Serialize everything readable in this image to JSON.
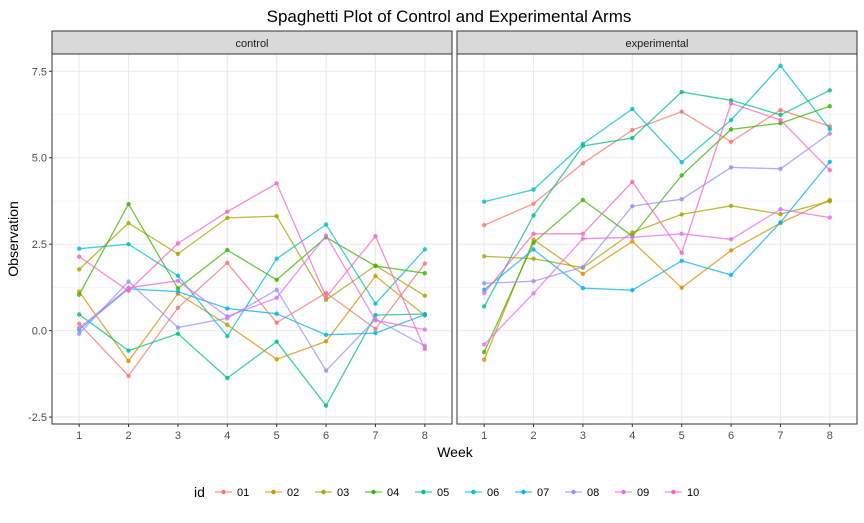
{
  "chart_data": {
    "type": "line",
    "title": "Spaghetti Plot of Control and Experimental Arms",
    "xlabel": "Week",
    "ylabel": "Observation",
    "x": [
      1,
      2,
      3,
      4,
      5,
      6,
      7,
      8
    ],
    "x_tick_labels": [
      "1",
      "2",
      "3",
      "4",
      "5",
      "6",
      "7",
      "8"
    ],
    "y_ticks": [
      -2.5,
      0.0,
      2.5,
      5.0,
      7.5
    ],
    "y_tick_labels": [
      "-2.5",
      "0.0",
      "2.5",
      "5.0",
      "7.5"
    ],
    "ylim": [
      -2.7,
      8.0
    ],
    "grid": true,
    "legend": {
      "title": "id",
      "placement": "bottom",
      "entries": [
        "01",
        "02",
        "03",
        "04",
        "05",
        "06",
        "07",
        "08",
        "09",
        "10"
      ]
    },
    "colors": {
      "01": "#F8766D",
      "02": "#D89000",
      "03": "#A3A500",
      "04": "#39B600",
      "05": "#00BF7D",
      "06": "#00BFC4",
      "07": "#00B0F6",
      "08": "#9590FF",
      "09": "#E76BF3",
      "10": "#FF62BC"
    },
    "panels": [
      {
        "label": "control",
        "series": [
          {
            "id": "01",
            "values": [
              0.2,
              -1.31,
              0.66,
              1.96,
              0.23,
              1.09,
              0.05,
              1.94
            ]
          },
          {
            "id": "02",
            "values": [
              1.13,
              -0.88,
              1.07,
              0.17,
              -0.83,
              -0.31,
              1.58,
              0.44
            ]
          },
          {
            "id": "03",
            "values": [
              1.77,
              3.11,
              2.22,
              3.26,
              3.31,
              0.89,
              1.88,
              1.01
            ]
          },
          {
            "id": "04",
            "values": [
              1.04,
              3.66,
              1.22,
              2.33,
              1.47,
              2.7,
              1.87,
              1.66
            ]
          },
          {
            "id": "05",
            "values": [
              0.47,
              -0.58,
              -0.09,
              -1.37,
              -0.32,
              -2.17,
              0.45,
              0.48
            ]
          },
          {
            "id": "06",
            "values": [
              2.37,
              2.5,
              1.59,
              -0.16,
              2.08,
              3.07,
              0.78,
              2.35
            ]
          },
          {
            "id": "07",
            "values": [
              0.03,
              1.21,
              1.13,
              0.64,
              0.49,
              -0.12,
              -0.07,
              0.46
            ]
          },
          {
            "id": "08",
            "values": [
              -0.09,
              1.42,
              0.09,
              0.36,
              1.18,
              -1.16,
              0.33,
              -0.44
            ]
          },
          {
            "id": "09",
            "values": [
              0.08,
              1.24,
              1.44,
              0.41,
              0.95,
              2.75,
              0.3,
              0.03
            ]
          },
          {
            "id": "10",
            "values": [
              2.14,
              1.15,
              2.52,
              3.44,
              4.26,
              0.97,
              2.73,
              -0.53
            ]
          }
        ]
      },
      {
        "label": "experimental",
        "series": [
          {
            "id": "01",
            "values": [
              3.05,
              3.67,
              4.84,
              5.8,
              6.33,
              5.46,
              6.38,
              5.91
            ]
          },
          {
            "id": "02",
            "values": [
              -0.84,
              2.63,
              1.64,
              2.58,
              1.24,
              2.32,
              3.11,
              3.78
            ]
          },
          {
            "id": "03",
            "values": [
              2.15,
              2.08,
              1.82,
              2.84,
              3.36,
              3.61,
              3.37,
              3.74
            ]
          },
          {
            "id": "04",
            "values": [
              -0.62,
              2.54,
              3.78,
              2.73,
              4.49,
              5.82,
              6.0,
              6.49
            ]
          },
          {
            "id": "05",
            "values": [
              0.7,
              3.33,
              5.34,
              5.57,
              6.9,
              6.66,
              6.24,
              6.95
            ]
          },
          {
            "id": "06",
            "values": [
              3.73,
              4.08,
              5.4,
              6.41,
              4.87,
              6.09,
              7.66,
              5.83
            ]
          },
          {
            "id": "07",
            "values": [
              1.18,
              2.35,
              1.23,
              1.17,
              2.02,
              1.61,
              3.13,
              4.88
            ]
          },
          {
            "id": "08",
            "values": [
              1.37,
              1.43,
              1.84,
              3.6,
              3.8,
              4.72,
              4.68,
              5.7
            ]
          },
          {
            "id": "09",
            "values": [
              -0.4,
              1.08,
              2.66,
              2.7,
              2.8,
              2.64,
              3.51,
              3.27
            ]
          },
          {
            "id": "10",
            "values": [
              1.09,
              2.8,
              2.8,
              4.3,
              2.25,
              6.57,
              6.09,
              4.64
            ]
          }
        ]
      }
    ]
  }
}
